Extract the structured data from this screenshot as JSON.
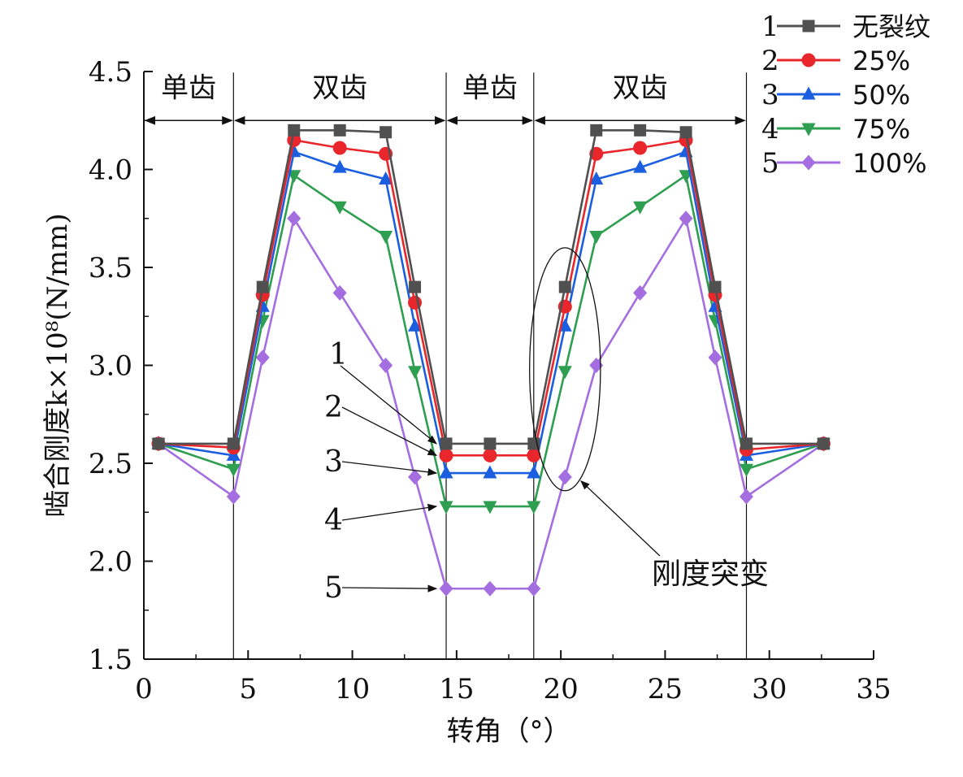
{
  "chart_data": {
    "type": "line",
    "xlabel": "转角（°）",
    "ylabel": "啮合刚度k×10⁸(N/mm)",
    "xlim": [
      0,
      35
    ],
    "ylim": [
      1.5,
      4.5
    ],
    "xticks": [
      "0",
      "5",
      "10",
      "15",
      "20",
      "25",
      "30",
      "35"
    ],
    "xtick_values": [
      0,
      5,
      10,
      15,
      20,
      25,
      30,
      35
    ],
    "yticks": [
      "1.5",
      "2.0",
      "2.5",
      "3.0",
      "3.5",
      "4.0",
      "4.5"
    ],
    "ytick_values": [
      1.5,
      2.0,
      2.5,
      3.0,
      3.5,
      4.0,
      4.5
    ],
    "grid": false,
    "legend_position": "top-right",
    "x": [
      0.7,
      4.3,
      5.7,
      7.2,
      9.4,
      11.6,
      13.0,
      14.5,
      16.6,
      18.7,
      20.2,
      21.7,
      23.8,
      26.0,
      27.4,
      28.9,
      32.6
    ],
    "series": [
      {
        "num": "1",
        "name": "无裂纹",
        "color": "#505050",
        "marker": "square",
        "values": [
          2.6,
          2.6,
          3.4,
          4.2,
          4.2,
          4.19,
          3.4,
          2.6,
          2.6,
          2.6,
          3.4,
          4.2,
          4.2,
          4.19,
          3.4,
          2.6,
          2.6
        ]
      },
      {
        "num": "2",
        "name": "25%",
        "color": "#e8262b",
        "marker": "circle",
        "values": [
          2.6,
          2.58,
          3.36,
          4.15,
          4.11,
          4.08,
          3.32,
          2.54,
          2.54,
          2.54,
          3.3,
          4.08,
          4.11,
          4.15,
          3.36,
          2.57,
          2.6
        ]
      },
      {
        "num": "3",
        "name": "50%",
        "color": "#1b5fe0",
        "marker": "triangle-up",
        "values": [
          2.6,
          2.54,
          3.3,
          4.09,
          4.01,
          3.95,
          3.2,
          2.45,
          2.45,
          2.45,
          3.2,
          3.95,
          4.01,
          4.09,
          3.3,
          2.54,
          2.6
        ]
      },
      {
        "num": "4",
        "name": "75%",
        "color": "#2e9e50",
        "marker": "triangle-down",
        "values": [
          2.6,
          2.47,
          3.23,
          3.97,
          3.81,
          3.66,
          2.97,
          2.28,
          2.28,
          2.28,
          2.97,
          3.66,
          3.81,
          3.97,
          3.23,
          2.47,
          2.6
        ]
      },
      {
        "num": "5",
        "name": "100%",
        "color": "#a56ee0",
        "marker": "diamond",
        "values": [
          2.6,
          2.33,
          3.04,
          3.75,
          3.37,
          3.0,
          2.43,
          1.86,
          1.86,
          1.86,
          2.43,
          3.0,
          3.37,
          3.75,
          3.04,
          2.33,
          2.6
        ]
      }
    ],
    "regions": [
      {
        "label": "单齿",
        "x0": 0,
        "x1": 4.3
      },
      {
        "label": "双齿",
        "x0": 4.3,
        "x1": 14.5
      },
      {
        "label": "单齿",
        "x0": 14.5,
        "x1": 18.7
      },
      {
        "label": "双齿",
        "x0": 18.7,
        "x1": 28.9
      }
    ],
    "region_boundaries": [
      4.3,
      14.5,
      18.7,
      28.9
    ],
    "region_label_y": 4.42,
    "annotations": [
      {
        "label": "1",
        "point": [
          14.5,
          2.6
        ]
      },
      {
        "label": "2",
        "point": [
          14.5,
          2.54
        ]
      },
      {
        "label": "3",
        "point": [
          14.5,
          2.45
        ]
      },
      {
        "label": "4",
        "point": [
          14.5,
          2.28
        ]
      },
      {
        "label": "5",
        "point": [
          14.5,
          1.86
        ]
      }
    ],
    "highlight": {
      "label": "刚度突变",
      "ellipse_center": [
        20.2,
        2.98
      ],
      "ellipse_half_width": 1.7,
      "ellipse_half_height": 0.62
    }
  }
}
